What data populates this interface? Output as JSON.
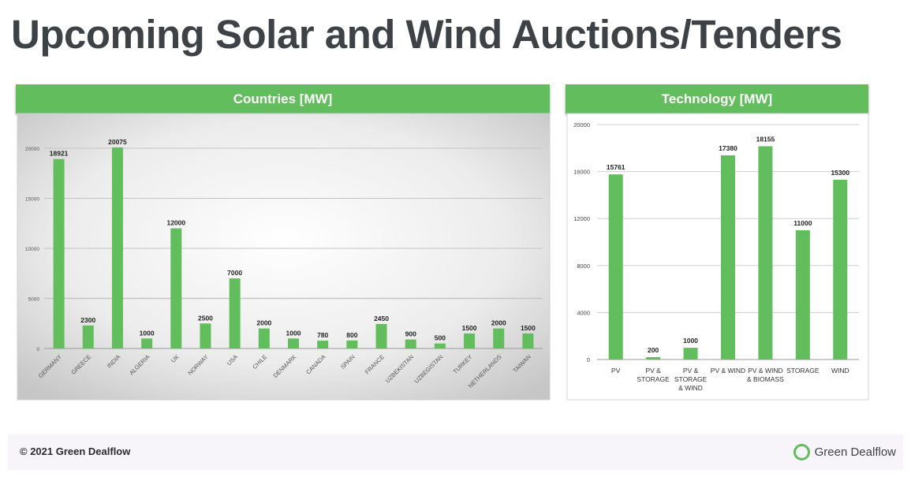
{
  "title": "Upcoming Solar and Wind Auctions/Tenders",
  "colors": {
    "bar": "#62bd5d",
    "header": "#62bd5d",
    "title_text": "#3d4246"
  },
  "countries_panel": {
    "header": "Countries [MW]"
  },
  "technology_panel": {
    "header": "Technology [MW]"
  },
  "footer": {
    "copyright": "© 2021 Green Dealflow",
    "brand": "Green Dealflow",
    "brand_icon": "green-ring-logo-icon"
  },
  "chart_data": [
    {
      "type": "bar",
      "title": "Countries [MW]",
      "xlabel": "",
      "ylabel": "",
      "ylim": [
        0,
        20000
      ],
      "yticks": [
        0,
        5000,
        10000,
        15000,
        20000
      ],
      "grid": true,
      "categories": [
        "GERMANY",
        "GREECE",
        "INDIA",
        "ALGERIA",
        "UK",
        "NORWAY",
        "USA",
        "CHILE",
        "DENMARK",
        "CANADA",
        "SPAIN",
        "FRANCE",
        "UZBEKISTAN",
        "UZBEGISTAN",
        "TURKEY",
        "NETHERLANDS",
        "TAIWAN"
      ],
      "values": [
        18921,
        2300,
        20075,
        1000,
        12000,
        2500,
        7000,
        2000,
        1000,
        780,
        800,
        2450,
        900,
        500,
        1500,
        2000,
        1500
      ]
    },
    {
      "type": "bar",
      "title": "Technology [MW]",
      "xlabel": "",
      "ylabel": "",
      "ylim": [
        0,
        20000
      ],
      "yticks": [
        0,
        4000,
        8000,
        12000,
        16000,
        20000
      ],
      "grid": true,
      "categories": [
        "PV",
        "PV & STORAGE",
        "PV & STORAGE & WIND",
        "PV & WIND",
        "PV & WIND & BIOMASS",
        "STORAGE",
        "WIND"
      ],
      "category_lines": [
        [
          "PV"
        ],
        [
          "PV &",
          "STORAGE"
        ],
        [
          "PV &",
          "STORAGE",
          "& WIND"
        ],
        [
          "PV & WIND"
        ],
        [
          "PV & WIND",
          "& BIOMASS"
        ],
        [
          "STORAGE"
        ],
        [
          "WIND"
        ]
      ],
      "values": [
        15761,
        200,
        1000,
        17380,
        18155,
        11000,
        15300
      ]
    }
  ]
}
